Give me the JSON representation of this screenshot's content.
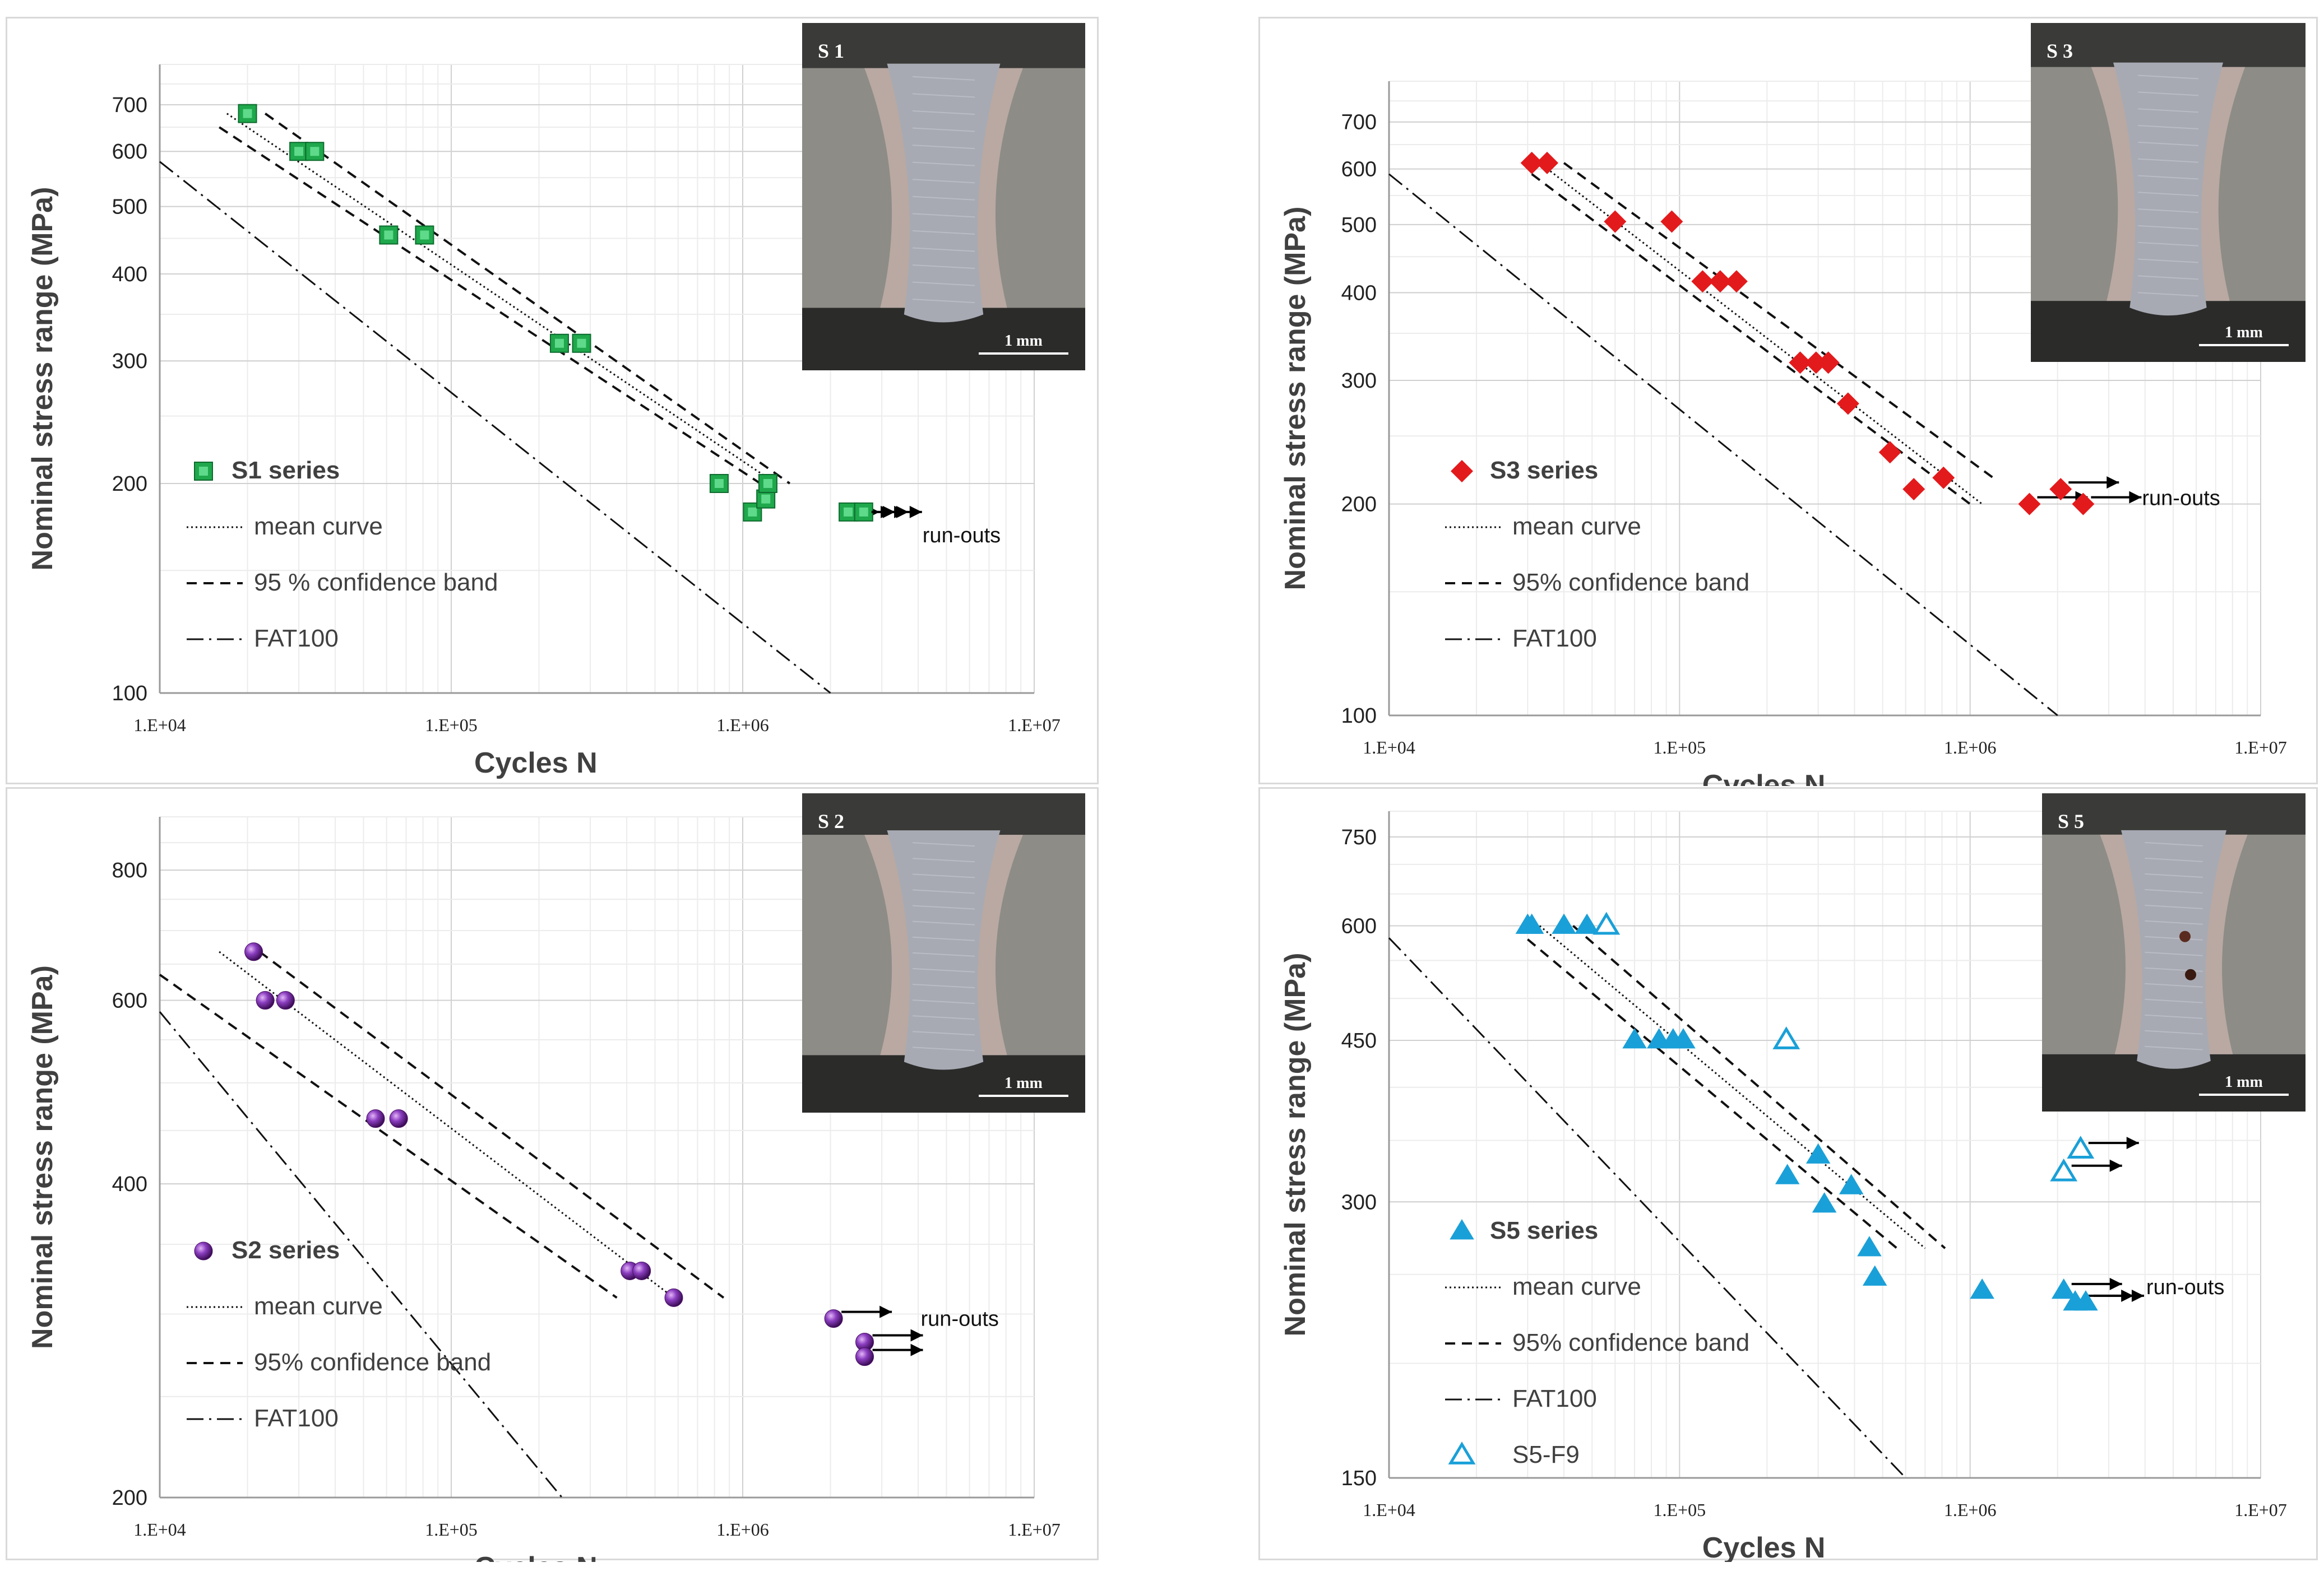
{
  "chart_data": [
    {
      "id": "s1",
      "type": "scatter",
      "xscale": "log",
      "yscale": "log",
      "xlim": [
        10000,
        10000000
      ],
      "ylim": [
        100,
        800
      ],
      "xticks": [
        "1.E+04",
        "1.E+05",
        "1.E+06",
        "1.E+07"
      ],
      "yticks": [
        {
          "value": 700,
          "label": "700"
        },
        {
          "value": 600,
          "label": "600"
        },
        {
          "value": 500,
          "label": "500"
        },
        {
          "value": 400,
          "label": "400"
        },
        {
          "value": 300,
          "label": "300"
        },
        {
          "value": 200,
          "label": "200"
        },
        {
          "value": 100,
          "label": "100"
        }
      ],
      "xlabel": "Cycles  N",
      "ylabel": "Nominal stress range (MPa)",
      "marker": "square",
      "color": "#1fa84c",
      "series": [
        {
          "name": "S1 series",
          "points": [
            [
              20000,
              680
            ],
            [
              30000,
              600
            ],
            [
              34000,
              600
            ],
            [
              61000,
              455
            ],
            [
              81000,
              455
            ],
            [
              235000,
              318
            ],
            [
              280000,
              318
            ],
            [
              830000,
              200
            ],
            [
              1080000,
              182
            ],
            [
              1200000,
              190
            ],
            [
              1220000,
              200
            ]
          ]
        },
        {
          "name": "run-outs",
          "points": [
            [
              2300000,
              182
            ],
            [
              2600000,
              182
            ]
          ]
        }
      ],
      "lines": [
        {
          "name": "mean curve",
          "style": "dotted",
          "from": [
            17000,
            680
          ],
          "to": [
            1300000,
            200
          ]
        },
        {
          "name": "95 % confidence band",
          "style": "dashed",
          "from": [
            23000,
            680
          ],
          "to": [
            1450000,
            200
          ]
        },
        {
          "name": "95 % confidence band",
          "style": "dashed",
          "from": [
            16000,
            650
          ],
          "to": [
            1150000,
            200
          ]
        },
        {
          "name": "FAT100",
          "style": "dashdot",
          "from": [
            10000,
            580
          ],
          "to": [
            2000000,
            100
          ]
        }
      ],
      "legend": [
        "S1 series",
        "mean curve",
        "95 % confidence band",
        "FAT100"
      ],
      "runout_label": "run-outs",
      "inset_label": "S 1",
      "scale_label": "1 mm"
    },
    {
      "id": "s3",
      "type": "scatter",
      "xscale": "log",
      "yscale": "log",
      "xlim": [
        10000,
        10000000
      ],
      "ylim": [
        100,
        800
      ],
      "xticks": [
        "1.E+04",
        "1.E+05",
        "1.E+06",
        "1.E+07"
      ],
      "yticks": [
        {
          "value": 700,
          "label": "700"
        },
        {
          "value": 600,
          "label": "600"
        },
        {
          "value": 500,
          "label": "500"
        },
        {
          "value": 400,
          "label": "400"
        },
        {
          "value": 300,
          "label": "300"
        },
        {
          "value": 200,
          "label": "200"
        },
        {
          "value": 100,
          "label": "100"
        }
      ],
      "xlabel": "Cycles  N",
      "ylabel": "Nominal stress range (MPa)",
      "marker": "diamond",
      "color": "#e31a1c",
      "series": [
        {
          "name": "S3 series",
          "points": [
            [
              31000,
              612
            ],
            [
              35000,
              612
            ],
            [
              60000,
              505
            ],
            [
              94000,
              505
            ],
            [
              120000,
              415
            ],
            [
              138000,
              415
            ],
            [
              157000,
              415
            ],
            [
              260000,
              318
            ],
            [
              295000,
              318
            ],
            [
              325000,
              318
            ],
            [
              380000,
              278
            ],
            [
              530000,
              237
            ],
            [
              640000,
              210
            ],
            [
              810000,
              218
            ]
          ]
        },
        {
          "name": "run-outs",
          "points": [
            [
              1600000,
              200
            ],
            [
              2050000,
              210
            ],
            [
              2450000,
              200
            ]
          ]
        }
      ],
      "lines": [
        {
          "name": "mean curve",
          "style": "dotted",
          "from": [
            33000,
            612
          ],
          "to": [
            1100000,
            200
          ]
        },
        {
          "name": "95% confidence band",
          "style": "dashed",
          "from": [
            40000,
            612
          ],
          "to": [
            1200000,
            218
          ]
        },
        {
          "name": "95% confidence band",
          "style": "dashed",
          "from": [
            31000,
            590
          ],
          "to": [
            1000000,
            200
          ]
        },
        {
          "name": "FAT100",
          "style": "dashdot",
          "from": [
            10000,
            590
          ],
          "to": [
            2000000,
            100
          ]
        }
      ],
      "legend": [
        "S3 series",
        "mean curve",
        "95% confidence band",
        "FAT100"
      ],
      "runout_label": "run-outs",
      "inset_label": "S 3",
      "scale_label": "1 mm"
    },
    {
      "id": "s2",
      "type": "scatter",
      "xscale": "log",
      "yscale": "log",
      "xlim": [
        10000,
        10000000
      ],
      "ylim": [
        200,
        900
      ],
      "xticks": [
        "1.E+04",
        "1.E+05",
        "1.E+06",
        "1.E+07"
      ],
      "yticks": [
        {
          "value": 800,
          "label": "800"
        },
        {
          "value": 600,
          "label": "600"
        },
        {
          "value": 400,
          "label": "400"
        },
        {
          "value": 200,
          "label": "200"
        }
      ],
      "xlabel": "Cycles  N",
      "ylabel": "Nominal stress range (MPa)",
      "marker": "sphere",
      "color": "#7b2fa8",
      "series": [
        {
          "name": "S2 series",
          "points": [
            [
              21000,
              668
            ],
            [
              23000,
              600
            ],
            [
              27000,
              600
            ],
            [
              55000,
              462
            ],
            [
              66000,
              462
            ],
            [
              410000,
              330
            ],
            [
              450000,
              330
            ],
            [
              580000,
              311
            ]
          ]
        },
        {
          "name": "run-outs",
          "points": [
            [
              2050000,
              297
            ],
            [
              2620000,
              282
            ],
            [
              2620000,
              273
            ]
          ]
        }
      ],
      "lines": [
        {
          "name": "mean curve",
          "style": "dotted",
          "from": [
            16000,
            668
          ],
          "to": [
            580000,
            311
          ]
        },
        {
          "name": "95% confidence band",
          "style": "dashed",
          "from": [
            22000,
            668
          ],
          "to": [
            860000,
            311
          ]
        },
        {
          "name": "95% confidence band",
          "style": "dashed",
          "from": [
            10000,
            635
          ],
          "to": [
            370000,
            311
          ]
        },
        {
          "name": "FAT100",
          "style": "dashdot",
          "from": [
            10000,
            585
          ],
          "to": [
            240000,
            200
          ]
        }
      ],
      "legend": [
        "S2 series",
        "mean curve",
        "95% confidence band",
        "FAT100"
      ],
      "runout_label": "run-outs",
      "inset_label": "S 2",
      "scale_label": "1 mm"
    },
    {
      "id": "s5",
      "type": "scatter",
      "xscale": "log",
      "yscale": "log",
      "xlim": [
        10000,
        10000000
      ],
      "ylim": [
        150,
        800
      ],
      "xticks": [
        "1.E+04",
        "1.E+05",
        "1.E+06",
        "1.E+07"
      ],
      "yticks": [
        {
          "value": 750,
          "label": "750"
        },
        {
          "value": 600,
          "label": "600"
        },
        {
          "value": 450,
          "label": "450"
        },
        {
          "value": 300,
          "label": "300"
        },
        {
          "value": 150,
          "label": "150"
        }
      ],
      "xlabel": "Cycles  N",
      "ylabel": "Nominal stress range (MPa)",
      "marker": "triangle",
      "color": "#1aa0d8",
      "series": [
        {
          "name": "S5 series",
          "points": [
            [
              30000,
              600
            ],
            [
              31000,
              600
            ],
            [
              40000,
              600
            ],
            [
              48000,
              600
            ],
            [
              70000,
              450
            ],
            [
              85000,
              450
            ],
            [
              95000,
              450
            ],
            [
              103000,
              450
            ],
            [
              235000,
              320
            ],
            [
              300000,
              337
            ],
            [
              315000,
              298
            ],
            [
              390000,
              312
            ],
            [
              450000,
              267
            ],
            [
              470000,
              248
            ],
            [
              1100000,
              240
            ]
          ]
        },
        {
          "name": "S5-F9",
          "hollow": true,
          "points": [
            [
              56000,
              600
            ],
            [
              233000,
              450
            ]
          ]
        },
        {
          "name": "run-outs",
          "points": [
            [
              2100000,
              240
            ],
            [
              2300000,
              233
            ],
            [
              2500000,
              233
            ]
          ]
        },
        {
          "name": "S5-F9 run-outs",
          "hollow": true,
          "points": [
            [
              2100000,
              323
            ],
            [
              2400000,
              342
            ]
          ]
        }
      ],
      "lines": [
        {
          "name": "mean curve",
          "style": "dotted",
          "from": [
            33000,
            600
          ],
          "to": [
            700000,
            267
          ]
        },
        {
          "name": "95% confidence band",
          "style": "dashed",
          "from": [
            43000,
            600
          ],
          "to": [
            820000,
            267
          ]
        },
        {
          "name": "95% confidence band",
          "style": "dashed",
          "from": [
            30000,
            580
          ],
          "to": [
            560000,
            267
          ]
        },
        {
          "name": "FAT100",
          "style": "dashdot",
          "from": [
            10000,
            582
          ],
          "to": [
            600000,
            150
          ]
        }
      ],
      "legend": [
        "S5 series",
        "mean curve",
        "95% confidence band",
        "FAT100",
        "S5-F9"
      ],
      "runout_label": "run-outs",
      "inset_label": "S 5",
      "scale_label": "1 mm"
    }
  ]
}
